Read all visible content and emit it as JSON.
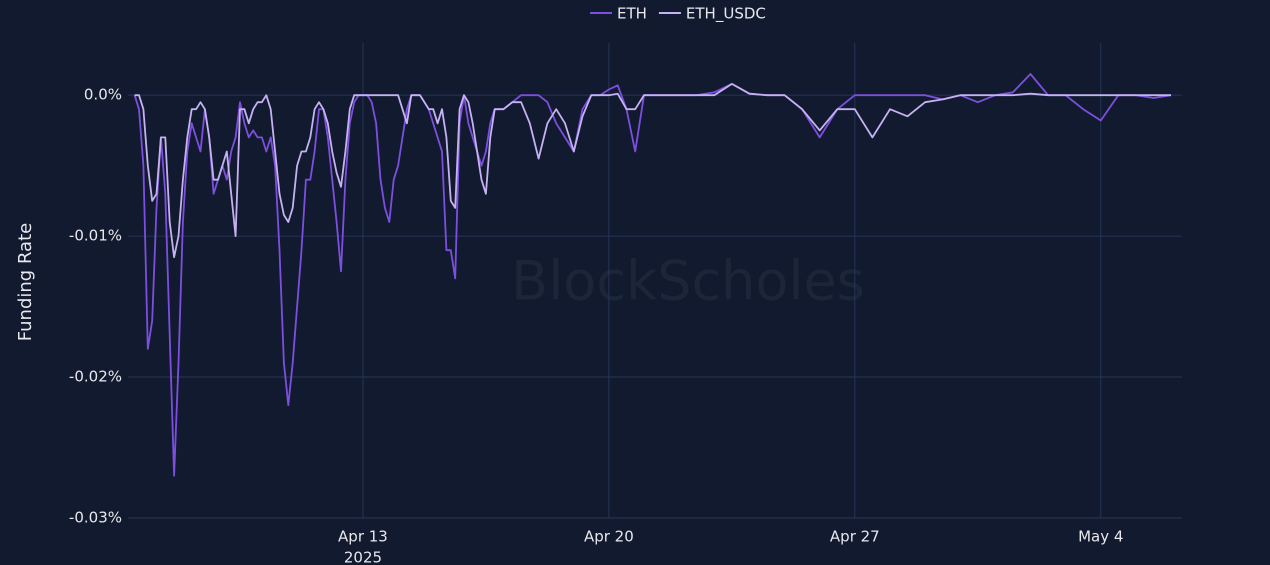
{
  "chart_data": {
    "type": "line",
    "y_axis_label": "Funding Rate",
    "watermark": "BlockScholes",
    "x_year_label": "2025",
    "legend_position": "top",
    "grid": true,
    "xlim": [
      "2025-04-06T07:30",
      "2025-05-06T07:30"
    ],
    "xticks": [
      {
        "value": "2025-04-13T00:00",
        "label": "Apr 13"
      },
      {
        "value": "2025-04-20T00:00",
        "label": "Apr 20"
      },
      {
        "value": "2025-04-27T00:00",
        "label": "Apr 27"
      },
      {
        "value": "2025-05-04T00:00",
        "label": "May 4"
      }
    ],
    "ylim": [
      -0.03,
      0.0037
    ],
    "yticks": [
      {
        "value": 0,
        "label": "0.0%"
      },
      {
        "value": -0.01,
        "label": "-0.01%"
      },
      {
        "value": -0.02,
        "label": "-0.02%"
      },
      {
        "value": -0.03,
        "label": "-0.03%"
      }
    ],
    "x": [
      "2025-04-06T12:00",
      "2025-04-06T15:00",
      "2025-04-06T18:00",
      "2025-04-06T21:00",
      "2025-04-07T00:00",
      "2025-04-07T03:00",
      "2025-04-07T06:00",
      "2025-04-07T09:00",
      "2025-04-07T12:00",
      "2025-04-07T15:00",
      "2025-04-07T18:00",
      "2025-04-07T21:00",
      "2025-04-08T00:00",
      "2025-04-08T03:00",
      "2025-04-08T06:00",
      "2025-04-08T09:00",
      "2025-04-08T12:00",
      "2025-04-08T15:00",
      "2025-04-08T18:00",
      "2025-04-08T21:00",
      "2025-04-09T00:00",
      "2025-04-09T03:00",
      "2025-04-09T06:00",
      "2025-04-09T09:00",
      "2025-04-09T12:00",
      "2025-04-09T15:00",
      "2025-04-09T18:00",
      "2025-04-09T21:00",
      "2025-04-10T00:00",
      "2025-04-10T03:00",
      "2025-04-10T06:00",
      "2025-04-10T09:00",
      "2025-04-10T12:00",
      "2025-04-10T15:00",
      "2025-04-10T18:00",
      "2025-04-10T21:00",
      "2025-04-11T00:00",
      "2025-04-11T03:00",
      "2025-04-11T06:00",
      "2025-04-11T09:00",
      "2025-04-11T12:00",
      "2025-04-11T15:00",
      "2025-04-11T18:00",
      "2025-04-11T21:00",
      "2025-04-12T00:00",
      "2025-04-12T03:00",
      "2025-04-12T06:00",
      "2025-04-12T09:00",
      "2025-04-12T12:00",
      "2025-04-12T15:00",
      "2025-04-12T18:00",
      "2025-04-12T21:00",
      "2025-04-13T00:00",
      "2025-04-13T03:00",
      "2025-04-13T06:00",
      "2025-04-13T09:00",
      "2025-04-13T12:00",
      "2025-04-13T15:00",
      "2025-04-13T18:00",
      "2025-04-13T21:00",
      "2025-04-14T00:00",
      "2025-04-14T03:00",
      "2025-04-14T06:00",
      "2025-04-14T09:00",
      "2025-04-14T12:00",
      "2025-04-14T15:00",
      "2025-04-14T18:00",
      "2025-04-14T21:00",
      "2025-04-15T00:00",
      "2025-04-15T03:00",
      "2025-04-15T06:00",
      "2025-04-15T09:00",
      "2025-04-15T12:00",
      "2025-04-15T15:00",
      "2025-04-15T18:00",
      "2025-04-15T21:00",
      "2025-04-16T00:00",
      "2025-04-16T03:00",
      "2025-04-16T06:00",
      "2025-04-16T09:00",
      "2025-04-16T12:00",
      "2025-04-16T15:00",
      "2025-04-16T18:00",
      "2025-04-16T21:00",
      "2025-04-17T00:00",
      "2025-04-17T06:00",
      "2025-04-17T12:00",
      "2025-04-17T18:00",
      "2025-04-18T00:00",
      "2025-04-18T06:00",
      "2025-04-18T12:00",
      "2025-04-18T18:00",
      "2025-04-19T00:00",
      "2025-04-19T06:00",
      "2025-04-19T12:00",
      "2025-04-19T18:00",
      "2025-04-20T00:00",
      "2025-04-20T06:00",
      "2025-04-20T12:00",
      "2025-04-20T18:00",
      "2025-04-21T00:00",
      "2025-04-21T12:00",
      "2025-04-22T00:00",
      "2025-04-22T12:00",
      "2025-04-23T00:00",
      "2025-04-23T12:00",
      "2025-04-24T00:00",
      "2025-04-24T12:00",
      "2025-04-25T00:00",
      "2025-04-25T12:00",
      "2025-04-26T00:00",
      "2025-04-26T12:00",
      "2025-04-27T00:00",
      "2025-04-27T12:00",
      "2025-04-28T00:00",
      "2025-04-28T12:00",
      "2025-04-29T00:00",
      "2025-04-29T12:00",
      "2025-04-30T00:00",
      "2025-04-30T12:00",
      "2025-05-01T00:00",
      "2025-05-01T12:00",
      "2025-05-02T00:00",
      "2025-05-02T12:00",
      "2025-05-03T00:00",
      "2025-05-03T12:00",
      "2025-05-04T00:00",
      "2025-05-04T12:00",
      "2025-05-05T00:00",
      "2025-05-05T12:00",
      "2025-05-06T00:00"
    ],
    "series": [
      {
        "name": "ETH",
        "color": "#7d4fe0",
        "values": [
          0,
          -0.001,
          -0.005,
          -0.018,
          -0.016,
          -0.008,
          -0.003,
          -0.007,
          -0.017,
          -0.027,
          -0.019,
          -0.009,
          -0.004,
          -0.002,
          -0.003,
          -0.004,
          -0.001,
          -0.003,
          -0.007,
          -0.006,
          -0.005,
          -0.006,
          -0.004,
          -0.003,
          -0.0005,
          -0.002,
          -0.003,
          -0.0025,
          -0.003,
          -0.003,
          -0.004,
          -0.003,
          -0.005,
          -0.011,
          -0.019,
          -0.022,
          -0.019,
          -0.015,
          -0.011,
          -0.006,
          -0.006,
          -0.004,
          -0.001,
          -0.001,
          -0.003,
          -0.006,
          -0.009,
          -0.0125,
          -0.006,
          -0.002,
          -0.0005,
          0,
          0,
          0,
          -0.0005,
          -0.002,
          -0.006,
          -0.008,
          -0.009,
          -0.006,
          -0.005,
          -0.003,
          -0.001,
          0,
          0,
          0,
          -0.0005,
          -0.001,
          -0.002,
          -0.003,
          -0.004,
          -0.011,
          -0.011,
          -0.013,
          -0.002,
          0,
          -0.002,
          -0.003,
          -0.004,
          -0.005,
          -0.004,
          -0.002,
          -0.001,
          -0.001,
          -0.001,
          -0.0005,
          0,
          0,
          0,
          -0.0005,
          -0.002,
          -0.003,
          -0.004,
          -0.001,
          0,
          0,
          0.0004,
          0.0007,
          -0.001,
          -0.004,
          0,
          0,
          0,
          0,
          0.0002,
          0.0008,
          0.0001,
          0,
          0,
          -0.001,
          -0.003,
          -0.001,
          0,
          0,
          0,
          0,
          0,
          -0.0003,
          0,
          -0.0005,
          0,
          0.0002,
          0.0015,
          0,
          0,
          -0.001,
          -0.0018,
          0,
          0,
          -0.0002,
          0
        ]
      },
      {
        "name": "ETH_USDC",
        "color": "#c6b2f2",
        "values": [
          0,
          0,
          -0.001,
          -0.005,
          -0.0075,
          -0.007,
          -0.003,
          -0.003,
          -0.009,
          -0.0115,
          -0.01,
          -0.006,
          -0.003,
          -0.001,
          -0.001,
          -0.0005,
          -0.001,
          -0.003,
          -0.006,
          -0.006,
          -0.005,
          -0.004,
          -0.007,
          -0.01,
          -0.001,
          -0.001,
          -0.002,
          -0.001,
          -0.0005,
          -0.0005,
          0,
          -0.001,
          -0.004,
          -0.007,
          -0.0085,
          -0.009,
          -0.008,
          -0.005,
          -0.004,
          -0.004,
          -0.003,
          -0.001,
          -0.0005,
          -0.001,
          -0.002,
          -0.004,
          -0.0055,
          -0.0065,
          -0.004,
          -0.001,
          0,
          0,
          0,
          0,
          0,
          0,
          0,
          0,
          0,
          0,
          0,
          -0.001,
          -0.002,
          0,
          0,
          0,
          -0.0005,
          -0.001,
          -0.001,
          -0.002,
          -0.001,
          -0.003,
          -0.0075,
          -0.008,
          -0.001,
          0,
          -0.0005,
          -0.002,
          -0.004,
          -0.006,
          -0.007,
          -0.003,
          -0.001,
          -0.001,
          -0.001,
          -0.0005,
          -0.0005,
          -0.002,
          -0.0045,
          -0.002,
          -0.001,
          -0.002,
          -0.004,
          -0.0015,
          0,
          0,
          0,
          0.0001,
          -0.001,
          -0.001,
          0,
          0,
          0,
          0,
          0,
          0.0008,
          0.0001,
          0,
          0,
          -0.001,
          -0.0025,
          -0.001,
          -0.001,
          -0.003,
          -0.001,
          -0.0015,
          -0.0005,
          -0.0003,
          0,
          0,
          0,
          0,
          0.0001,
          0,
          0,
          0,
          0,
          0,
          0,
          0,
          0
        ]
      }
    ]
  }
}
